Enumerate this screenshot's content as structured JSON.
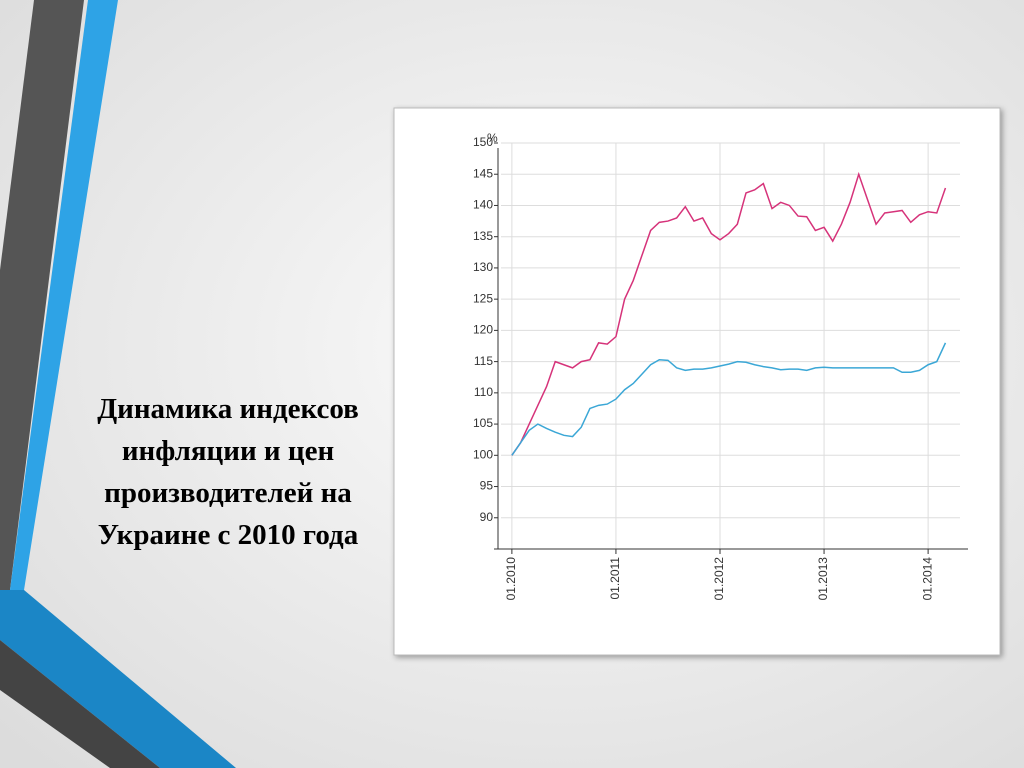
{
  "title": "Динамика индексов инфляции и цен производителей на Украине с 2010 года",
  "chart_data": {
    "type": "line",
    "y_label": "%",
    "x": [
      0,
      1,
      2,
      3,
      4,
      5,
      6,
      7,
      8,
      9,
      10,
      11,
      12,
      13,
      14,
      15,
      16,
      17,
      18,
      19,
      20,
      21,
      22,
      23,
      24,
      25,
      26,
      27,
      28,
      29,
      30,
      31,
      32,
      33,
      34,
      35,
      36,
      37,
      38,
      39,
      40,
      41,
      42,
      43,
      44,
      45,
      46,
      47,
      48,
      49,
      50
    ],
    "series": [
      {
        "color": "#d6337a",
        "values": [
          100,
          102,
          105,
          108,
          111,
          115,
          114.5,
          114,
          115,
          115.3,
          118,
          117.8,
          119,
          125,
          128,
          132,
          136,
          137.3,
          137.5,
          138,
          139.8,
          137.5,
          138,
          135.5,
          134.5,
          135.5,
          137,
          142,
          142.5,
          143.5,
          139.5,
          140.5,
          140,
          138.3,
          138.2,
          136,
          136.5,
          134.3,
          137,
          140.5,
          145,
          141,
          137,
          138.8,
          139,
          139.2,
          137.3,
          138.5,
          139,
          138.8,
          142.8
        ]
      },
      {
        "color": "#3ba7d6",
        "values": [
          100,
          102,
          104,
          105,
          104.3,
          103.7,
          103.2,
          103,
          104.5,
          107.5,
          108,
          108.2,
          109,
          110.5,
          111.5,
          113,
          114.5,
          115.3,
          115.2,
          114,
          113.6,
          113.8,
          113.8,
          114,
          114.3,
          114.6,
          115,
          114.9,
          114.5,
          114.2,
          114,
          113.7,
          113.8,
          113.8,
          113.6,
          114,
          114.1,
          114,
          114,
          114,
          114,
          114,
          114,
          114,
          114,
          113.3,
          113.3,
          113.6,
          114.5,
          115,
          118
        ]
      }
    ],
    "xlim": [
      -1.6,
      52.6
    ],
    "xticks": [
      {
        "value": 0,
        "label": "01.2010"
      },
      {
        "value": 12,
        "label": "01.2011"
      },
      {
        "value": 24,
        "label": "01.2012"
      },
      {
        "value": 36,
        "label": "01.2013"
      },
      {
        "value": 48,
        "label": "01.2014"
      }
    ],
    "ylim": [
      85,
      150
    ],
    "yticks": [
      90,
      95,
      100,
      105,
      110,
      115,
      120,
      125,
      130,
      135,
      140,
      145,
      150
    ],
    "grid": true
  }
}
